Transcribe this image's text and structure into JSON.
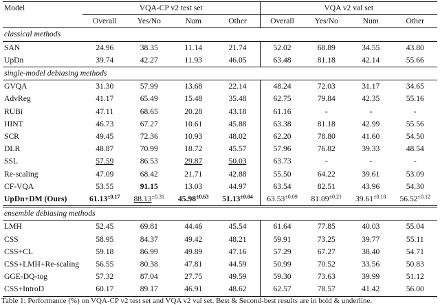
{
  "header": {
    "model": "Model",
    "group1": "VQA-CP v2 test set",
    "group2": "VQA v2 val set",
    "cols": [
      "Overall",
      "Yes/No",
      "Num",
      "Other",
      "Overall",
      "Yes/No",
      "Num",
      "Other"
    ]
  },
  "sections": {
    "classical": "classical methods",
    "single": "single-model debiasing methods",
    "ensemble": "ensemble debiasing methods"
  },
  "classical_rows": [
    {
      "model": "SAN",
      "v": [
        "24.96",
        "38.35",
        "11.14",
        "21.74",
        "52.02",
        "68.89",
        "34.55",
        "43.80"
      ]
    },
    {
      "model": "UpDn",
      "v": [
        "39.74",
        "42.27",
        "11.93",
        "46.05",
        "63.48",
        "81.18",
        "42.14",
        "55.66"
      ]
    }
  ],
  "single_rows": [
    {
      "model": "GVQA",
      "v": [
        "31.30",
        "57.99",
        "13.68",
        "22.14",
        "48.24",
        "72.03",
        "31.17",
        "34.65"
      ]
    },
    {
      "model": "AdvReg",
      "v": [
        "41.17",
        "65.49",
        "15.48",
        "35.48",
        "62.75",
        "79.84",
        "42.35",
        "55.16"
      ]
    },
    {
      "model": "RUBi",
      "v": [
        "47.11",
        "68.65",
        "20.28",
        "43.18",
        "61.16",
        "-",
        "-",
        "-"
      ]
    },
    {
      "model": "HINT",
      "v": [
        "46.73",
        "67.27",
        "10.61",
        "45.88",
        "63.38",
        "81.18",
        "42.99",
        "55.56"
      ]
    },
    {
      "model": "SCR",
      "v": [
        "49.45",
        "72.36",
        "10.93",
        "48.02",
        "62.20",
        "78.80",
        "41.60",
        "54.50"
      ]
    },
    {
      "model": "DLR",
      "v": [
        "48.87",
        "70.99",
        "18.72",
        "45.57",
        "57.96",
        "76.82",
        "39.33",
        "48.54"
      ]
    },
    {
      "model": "SSL",
      "v": [
        "57.59",
        "86.53",
        "29.87",
        "50.03",
        "63.73",
        "-",
        "-",
        "-"
      ]
    },
    {
      "model": "Re-scaling",
      "v": [
        "47.09",
        "68.42",
        "21.71",
        "42.88",
        "55.50",
        "64.22",
        "39.61",
        "53.09"
      ]
    },
    {
      "model": "CF-VQA",
      "v": [
        "53.55",
        "91.15",
        "13.03",
        "44.97",
        "63.54",
        "82.51",
        "43.96",
        "54.30"
      ]
    }
  ],
  "ours": {
    "model": "UpDn+DM (Ours)",
    "v": [
      "61.13",
      "88.13",
      "45.98",
      "51.13",
      "63.53",
      "81.09",
      "39.61",
      "56.52"
    ],
    "sd": [
      "±0.17",
      "±0.31",
      "±0.63",
      "±0.04",
      "±0.09",
      "±0.21",
      "±0.18",
      "±0.12"
    ]
  },
  "ensemble_rows": [
    {
      "model": "LMH",
      "v": [
        "52.45",
        "69.81",
        "44.46",
        "45.54",
        "61.64",
        "77.85",
        "40.03",
        "55.04"
      ]
    },
    {
      "model": "CSS",
      "v": [
        "58.95",
        "84.37",
        "49.42",
        "48.21",
        "59.91",
        "73.25",
        "39.77",
        "55.11"
      ]
    },
    {
      "model": "CSS+CL",
      "v": [
        "59.18",
        "86.99",
        "49.89",
        "47.16",
        "57.29",
        "67.27",
        "38.40",
        "54.71"
      ]
    },
    {
      "model": "CSS+LMH+Re-scaling",
      "v": [
        "56.55",
        "80.38",
        "47.81",
        "44.59",
        "50.99",
        "70.52",
        "33.56",
        "50.83"
      ]
    },
    {
      "model": "GGE-DQ-tog",
      "v": [
        "57.32",
        "87.04",
        "27.75",
        "49.59",
        "59.30",
        "73.63",
        "39.99",
        "51.12"
      ]
    },
    {
      "model": "CSS+IntroD",
      "v": [
        "60.17",
        "89.17",
        "46.91",
        "48.62",
        "62.57",
        "78.57",
        "41.42",
        "56.00"
      ]
    }
  ],
  "caption": "Table 1: Performance (%) on VQA-CP v2 test set and VQA v2 val set. Best & Second-best results are in bold & underline."
}
